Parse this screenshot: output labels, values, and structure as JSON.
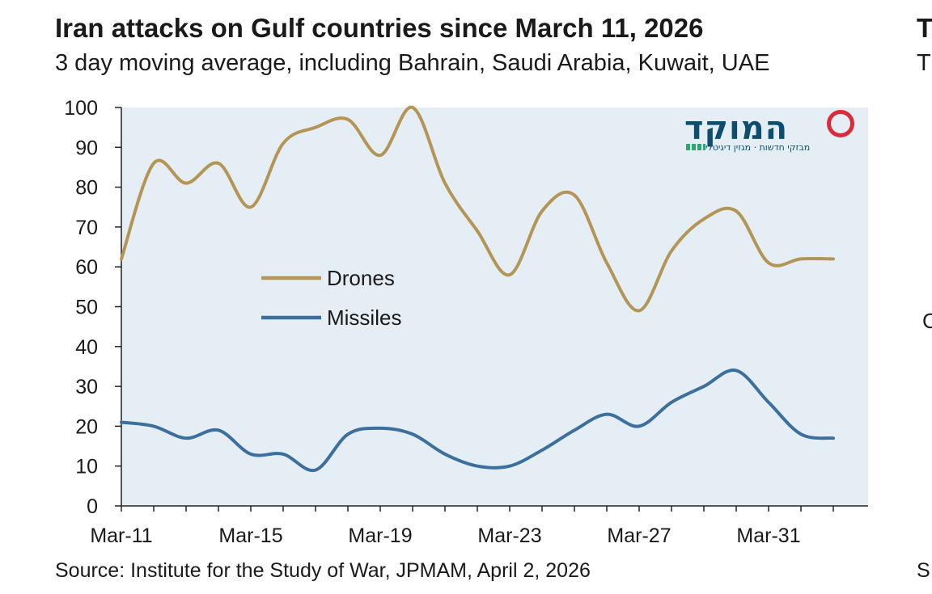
{
  "title": "Iran attacks on Gulf countries since March 11, 2026",
  "subtitle": "3 day moving average, including Bahrain, Saudi Arabia, Kuwait, UAE",
  "source": "Source: Institute for the Study of War, JPMAM, April 2, 2026",
  "clipped_text": [
    "T",
    "T",
    "C",
    "S"
  ],
  "logo": {
    "main": "המוקד",
    "sub": "מבזקי חדשות · מגזין דיגיטלי",
    "colors": {
      "text": "#0d4e6e",
      "ring": "#d92b3a",
      "dots": "#2aa876"
    }
  },
  "chart_data": {
    "type": "line",
    "x": [
      "Mar-11",
      "Mar-12",
      "Mar-13",
      "Mar-14",
      "Mar-15",
      "Mar-16",
      "Mar-17",
      "Mar-18",
      "Mar-19",
      "Mar-20",
      "Mar-21",
      "Mar-22",
      "Mar-23",
      "Mar-24",
      "Mar-25",
      "Mar-26",
      "Mar-27",
      "Mar-28",
      "Mar-29",
      "Mar-30",
      "Mar-31",
      "Apr-01",
      "Apr-02"
    ],
    "x_tick_labels": [
      "Mar-11",
      "Mar-15",
      "Mar-19",
      "Mar-23",
      "Mar-27",
      "Mar-31"
    ],
    "series": [
      {
        "name": "Drones",
        "color": "#b39555",
        "values": [
          62,
          86,
          81,
          86,
          75,
          91,
          95,
          97,
          88,
          100,
          81,
          69,
          58,
          74,
          78,
          61,
          49,
          64,
          72,
          74,
          61,
          62,
          62
        ]
      },
      {
        "name": "Missiles",
        "color": "#3a6f9e",
        "values": [
          21,
          20,
          17,
          19,
          13,
          13,
          9,
          18,
          19.5,
          18,
          13,
          10,
          10,
          14,
          19,
          23,
          20,
          26,
          30,
          34,
          26,
          18,
          17
        ]
      }
    ],
    "ylim": [
      0,
      100
    ],
    "y_ticks": [
      0,
      10,
      20,
      30,
      40,
      50,
      60,
      70,
      80,
      90,
      100
    ],
    "grid": false,
    "legend_position": "center-left",
    "plot_background": "#e6eef5"
  }
}
